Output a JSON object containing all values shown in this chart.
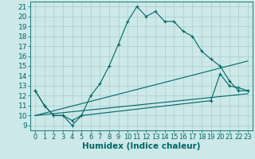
{
  "xlabel": "Humidex (Indice chaleur)",
  "background_color": "#cce8e8",
  "grid_color": "#aacccc",
  "line_color": "#006666",
  "xlim": [
    -0.5,
    23.5
  ],
  "ylim": [
    8.5,
    21.5
  ],
  "yticks": [
    9,
    10,
    11,
    12,
    13,
    14,
    15,
    16,
    17,
    18,
    19,
    20,
    21
  ],
  "xticks": [
    0,
    1,
    2,
    3,
    4,
    5,
    6,
    7,
    8,
    9,
    10,
    11,
    12,
    13,
    14,
    15,
    16,
    17,
    18,
    19,
    20,
    21,
    22,
    23
  ],
  "line1_x": [
    0,
    1,
    2,
    3,
    4,
    5,
    6,
    7,
    8,
    9,
    10,
    11,
    12,
    13,
    14,
    15,
    16,
    17,
    18,
    19,
    20,
    21,
    22,
    23
  ],
  "line1_y": [
    12.5,
    11.0,
    10.0,
    10.0,
    9.5,
    10.0,
    12.0,
    13.2,
    15.0,
    17.2,
    19.5,
    21.0,
    20.0,
    20.5,
    19.5,
    19.5,
    18.5,
    18.0,
    16.5,
    15.7,
    15.0,
    13.5,
    12.5,
    12.5
  ],
  "line2_x": [
    0,
    1,
    2,
    3,
    4,
    5,
    19,
    20,
    21,
    22,
    23
  ],
  "line2_y": [
    12.5,
    11.0,
    10.0,
    10.0,
    9.0,
    10.0,
    11.5,
    14.2,
    13.0,
    12.8,
    12.5
  ],
  "line3_x": [
    0,
    23
  ],
  "line3_y": [
    10.0,
    15.5
  ],
  "line4_x": [
    0,
    23
  ],
  "line4_y": [
    10.0,
    12.2
  ],
  "font_size": 6.5
}
